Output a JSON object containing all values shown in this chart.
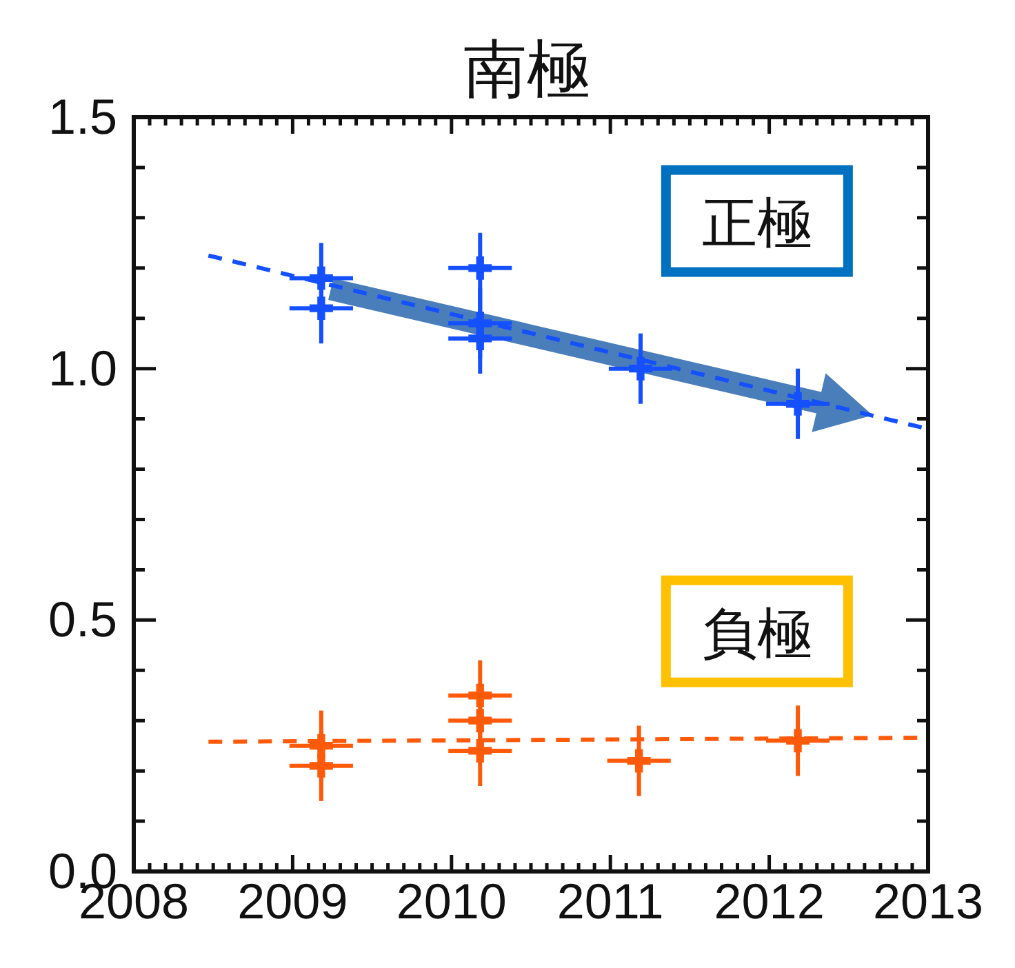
{
  "chart_data": {
    "type": "scatter",
    "title": "南極",
    "xlim": [
      2008,
      2013
    ],
    "ylim": [
      0,
      1.5
    ],
    "xticks": [
      2008,
      {
        "value": 2008.1,
        "label": null
      },
      {
        "value": 2008.2,
        "label": null
      },
      {
        "value": 2008.3,
        "label": null
      },
      {
        "value": 2008.4,
        "label": null
      },
      {
        "value": 2008.5,
        "label": null
      },
      {
        "value": 2008.6,
        "label": null
      },
      {
        "value": 2008.7,
        "label": null
      },
      {
        "value": 2008.8,
        "label": null
      },
      {
        "value": 2008.9,
        "label": null
      },
      2009,
      {
        "value": 2009.1,
        "label": null
      },
      {
        "value": 2009.2,
        "label": null
      },
      {
        "value": 2009.3,
        "label": null
      },
      {
        "value": 2009.4,
        "label": null
      },
      {
        "value": 2009.5,
        "label": null
      },
      {
        "value": 2009.6,
        "label": null
      },
      {
        "value": 2009.7,
        "label": null
      },
      {
        "value": 2009.8,
        "label": null
      },
      {
        "value": 2009.9,
        "label": null
      },
      2010,
      {
        "value": 2010.1,
        "label": null
      },
      {
        "value": 2010.2,
        "label": null
      },
      {
        "value": 2010.3,
        "label": null
      },
      {
        "value": 2010.4,
        "label": null
      },
      {
        "value": 2010.5,
        "label": null
      },
      {
        "value": 2010.6,
        "label": null
      },
      {
        "value": 2010.7,
        "label": null
      },
      {
        "value": 2010.8,
        "label": null
      },
      {
        "value": 2010.9,
        "label": null
      },
      2011,
      {
        "value": 2011.1,
        "label": null
      },
      {
        "value": 2011.2,
        "label": null
      },
      {
        "value": 2011.3,
        "label": null
      },
      {
        "value": 2011.4,
        "label": null
      },
      {
        "value": 2011.5,
        "label": null
      },
      {
        "value": 2011.6,
        "label": null
      },
      {
        "value": 2011.7,
        "label": null
      },
      {
        "value": 2011.8,
        "label": null
      },
      {
        "value": 2011.9,
        "label": null
      },
      2012,
      {
        "value": 2012.1,
        "label": null
      },
      {
        "value": 2012.2,
        "label": null
      },
      {
        "value": 2012.3,
        "label": null
      },
      {
        "value": 2012.4,
        "label": null
      },
      {
        "value": 2012.5,
        "label": null
      },
      {
        "value": 2012.6,
        "label": null
      },
      {
        "value": 2012.7,
        "label": null
      },
      {
        "value": 2012.8,
        "label": null
      },
      {
        "value": 2012.9,
        "label": null
      },
      2013
    ],
    "yticks": [
      {
        "value": 0,
        "label": "0.0"
      },
      {
        "value": 0.1,
        "label": null
      },
      {
        "value": 0.2,
        "label": null
      },
      {
        "value": 0.3,
        "label": null
      },
      {
        "value": 0.4,
        "label": null
      },
      0.5,
      {
        "value": 0.6,
        "label": null
      },
      {
        "value": 0.7,
        "label": null
      },
      {
        "value": 0.8,
        "label": null
      },
      {
        "value": 0.9,
        "label": null
      },
      {
        "value": 1,
        "label": "1.0"
      },
      {
        "value": 1.1,
        "label": null
      },
      {
        "value": 1.2,
        "label": null
      },
      {
        "value": 1.3,
        "label": null
      },
      {
        "value": 1.4,
        "label": null
      },
      1.5
    ],
    "grid": false,
    "marker": "cross",
    "annotations": [
      "正極",
      "負極"
    ],
    "series": [
      {
        "color": "#1450ff",
        "x": [
          2009.18,
          2009.18,
          2010.18,
          2010.18,
          2010.18,
          2011.19,
          2012.18
        ],
        "values": [
          1.18,
          1.12,
          1.2,
          1.09,
          1.06,
          1.0,
          0.93
        ],
        "errors": [
          0.07,
          0.07,
          0.07,
          0.07,
          0.07,
          0.07,
          0.07
        ],
        "xerrors": [
          0.2,
          0.2,
          0.2,
          0.2,
          0.2,
          0.2,
          0.2
        ]
      },
      {
        "color": "#ff5a0a",
        "x": [
          2009.18,
          2009.18,
          2010.18,
          2010.18,
          2010.18,
          2011.18,
          2012.18
        ],
        "values": [
          0.25,
          0.21,
          0.35,
          0.3,
          0.24,
          0.22,
          0.26
        ],
        "errors": [
          0.07,
          0.07,
          0.07,
          0.07,
          0.07,
          0.07,
          0.07
        ],
        "xerrors": [
          0.2,
          0.2,
          0.2,
          0.2,
          0.2,
          0.2,
          0.2
        ]
      },
      {
        "type": "line",
        "color": "#1450ff",
        "line_style": "dashed",
        "marker": "none",
        "x": [
          2008.47,
          2013
        ],
        "values": [
          1.225,
          0.88
        ]
      },
      {
        "type": "line",
        "color": "#ff5a0a",
        "line_style": "dashed",
        "marker": "none",
        "x": [
          2008.47,
          2013
        ],
        "values": [
          0.258,
          0.266
        ]
      }
    ]
  }
}
